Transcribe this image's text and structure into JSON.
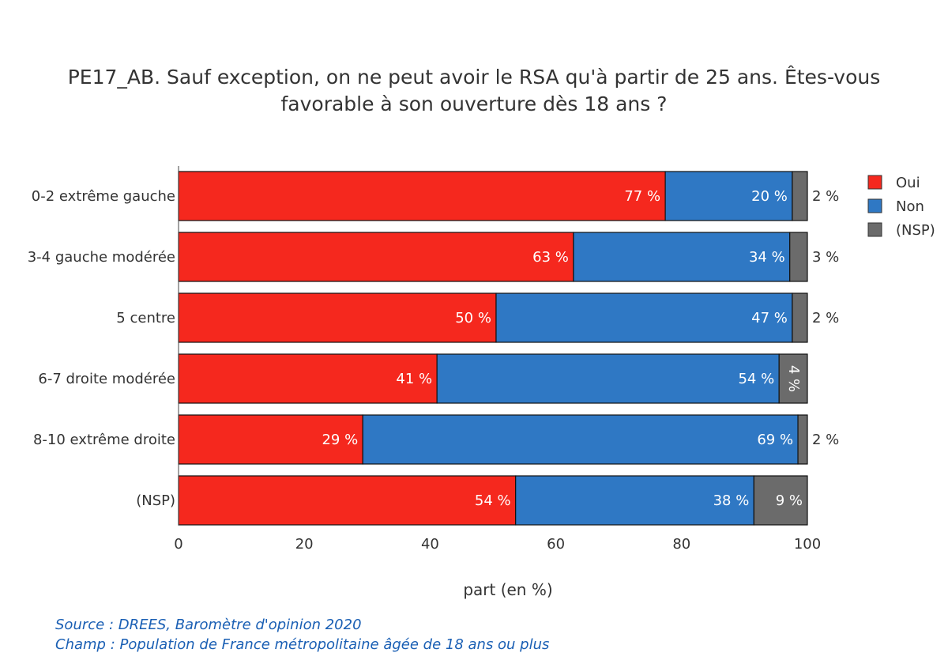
{
  "chart_data": {
    "type": "bar",
    "orientation": "horizontal",
    "stacked": true,
    "title_lines": [
      "PE17_AB. Sauf exception, on ne peut avoir le RSA qu'à partir de 25 ans. Êtes-vous",
      "favorable à son ouverture dès 18 ans ?"
    ],
    "xlabel": "part (en %)",
    "ylabel": "",
    "xlim": [
      0,
      100
    ],
    "xticks": [
      "0",
      "20",
      "40",
      "60",
      "80",
      "100"
    ],
    "grid": false,
    "legend_position": "top-right",
    "categories": [
      "0-2 extrême gauche",
      "3-4 gauche modérée",
      "5 centre",
      "6-7 droite modérée",
      "8-10 extrême droite",
      "(NSP)"
    ],
    "series": [
      {
        "name": "Oui",
        "color": "#f5281e",
        "values": [
          77.4,
          62.8,
          50.5,
          41.1,
          29.3,
          53.6
        ],
        "labels": [
          "77 %",
          "63 %",
          "50 %",
          "41 %",
          "29 %",
          "54 %"
        ]
      },
      {
        "name": "Non",
        "color": "#2f78c4",
        "values": [
          20.2,
          34.4,
          47.1,
          54.4,
          69.2,
          37.9
        ],
        "labels": [
          "20 %",
          "34 %",
          "47 %",
          "54 %",
          "69 %",
          "38 %"
        ]
      },
      {
        "name": "(NSP)",
        "color": "#6b6b6b",
        "values": [
          2.4,
          2.8,
          2.4,
          4.5,
          1.5,
          8.5
        ],
        "labels": [
          "2 %",
          "3 %",
          "2 %",
          "4 %",
          "2 %",
          "9 %"
        ]
      }
    ]
  },
  "source": {
    "line1": "Source : DREES, Baromètre d'opinion 2020",
    "line2": "Champ : Population de France métropolitaine âgée de 18 ans ou plus"
  }
}
